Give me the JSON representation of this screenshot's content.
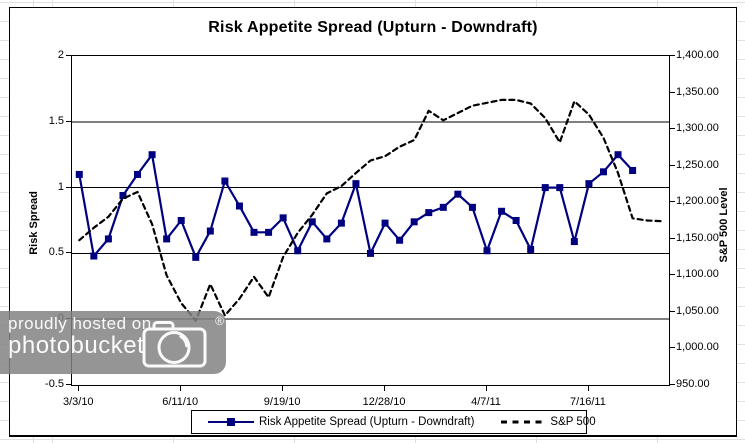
{
  "title": "Risk Appetite Spread (Upturn - Downdraft)",
  "watermark": {
    "line1": "proudly hosted on",
    "line2": "photobucket",
    "registered": "®"
  },
  "colors": {
    "spread_line": "#000080",
    "sp500_line": "#000000",
    "grid_line": "#000000",
    "watermark_bg": "#828282"
  },
  "chart_data": {
    "type": "line",
    "title": "Risk Appetite Spread (Upturn - Downdraft)",
    "grid": "horizontal",
    "legend_position": "bottom",
    "x_count": 41,
    "x_tick_labels": [
      {
        "index": 0,
        "label": "3/3/10"
      },
      {
        "index": 7,
        "label": "6/11/10"
      },
      {
        "index": 14,
        "label": "9/19/10"
      },
      {
        "index": 21,
        "label": "12/28/10"
      },
      {
        "index": 28,
        "label": "4/7/11"
      },
      {
        "index": 35,
        "label": "7/16/11"
      }
    ],
    "left_axis": {
      "label": "Risk Spread",
      "min": -0.5,
      "max": 2,
      "step": 0.5,
      "tick_labels": [
        "2",
        "1.5",
        "1",
        "0.5",
        "0",
        "-0.5"
      ]
    },
    "right_axis": {
      "label": "S&P 500 Level",
      "min": 950,
      "max": 1400,
      "step": 50,
      "tick_labels": [
        "1,400.00",
        "1,350.00",
        "1,300.00",
        "1,250.00",
        "1,200.00",
        "1,150.00",
        "1,100.00",
        "1,050.00",
        "1,000.00",
        "950.00"
      ]
    },
    "series": [
      {
        "name": "Risk Appetite Spread (Upturn - Downdraft)",
        "axis": "left",
        "style": "solid",
        "markers": "square",
        "color": "#000080",
        "values": [
          1.1,
          0.48,
          0.61,
          0.94,
          1.1,
          1.25,
          0.61,
          0.75,
          0.47,
          0.67,
          1.05,
          0.86,
          0.66,
          0.66,
          0.77,
          0.52,
          0.74,
          0.61,
          0.73,
          1.03,
          0.5,
          0.73,
          0.6,
          0.74,
          0.81,
          0.85,
          0.95,
          0.85,
          0.52,
          0.82,
          0.75,
          0.53,
          1.0,
          1.0,
          0.59,
          1.03,
          1.12,
          1.25,
          1.13,
          null,
          null
        ]
      },
      {
        "name": "S&P 500",
        "axis": "right",
        "style": "dashed",
        "markers": "none",
        "color": "#000000",
        "values": [
          1148,
          1165,
          1180,
          1205,
          1214,
          1170,
          1100,
          1062,
          1038,
          1088,
          1045,
          1068,
          1098,
          1070,
          1125,
          1158,
          1183,
          1212,
          1222,
          1240,
          1257,
          1263,
          1276,
          1285,
          1325,
          1312,
          1322,
          1332,
          1336,
          1340,
          1340,
          1335,
          1315,
          1282,
          1338,
          1320,
          1288,
          1240,
          1178,
          1175,
          1174
        ]
      }
    ]
  }
}
